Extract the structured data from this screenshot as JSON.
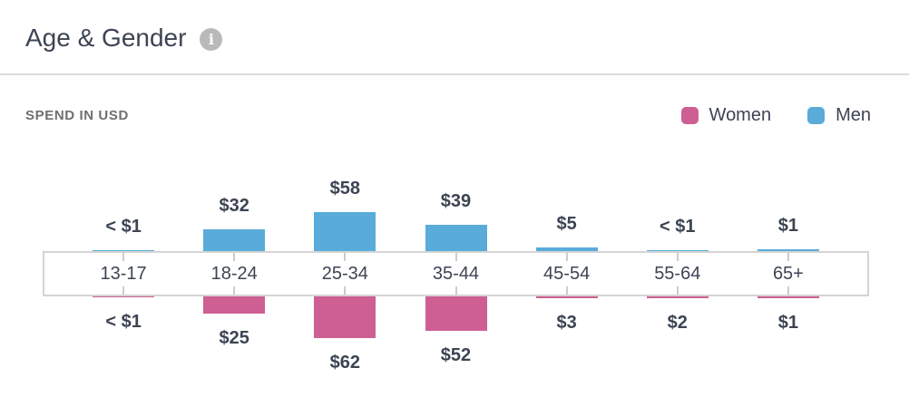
{
  "header": {
    "title": "Age & Gender",
    "info_icon": "i"
  },
  "section": {
    "label": "SPEND IN USD"
  },
  "legend": [
    {
      "name": "Women",
      "color": "#ce5f92"
    },
    {
      "name": "Men",
      "color": "#59acd9"
    }
  ],
  "colors": {
    "men": "#59acd9",
    "women": "#ce5f92",
    "text": "#3c4453",
    "muted_label": "#6f6f6f",
    "axis_border": "#d4d4d4",
    "tick": "#cccccc",
    "divider": "#dcdcdc",
    "info_icon_bg": "#b9b9b9"
  },
  "chart_data": {
    "type": "bar",
    "variant": "diverging-vertical",
    "title": "Age & Gender",
    "subtitle": "SPEND IN USD",
    "unit": "USD",
    "categories": [
      "13-17",
      "18-24",
      "25-34",
      "35-44",
      "45-54",
      "55-64",
      "65+"
    ],
    "series": [
      {
        "name": "Men",
        "direction": "up",
        "color": "#59acd9",
        "values": [
          0.5,
          32,
          58,
          39,
          5,
          0.5,
          1
        ],
        "labels": [
          "< $1",
          "$32",
          "$58",
          "$39",
          "$5",
          "< $1",
          "$1"
        ]
      },
      {
        "name": "Women",
        "direction": "down",
        "color": "#ce5f92",
        "values": [
          0.5,
          25,
          62,
          52,
          3,
          2,
          1
        ],
        "labels": [
          "< $1",
          "$25",
          "$62",
          "$52",
          "$3",
          "$2",
          "$1"
        ]
      }
    ],
    "legend_position": "top-right",
    "grid": false,
    "axis_range_usd": [
      0,
      62
    ]
  }
}
